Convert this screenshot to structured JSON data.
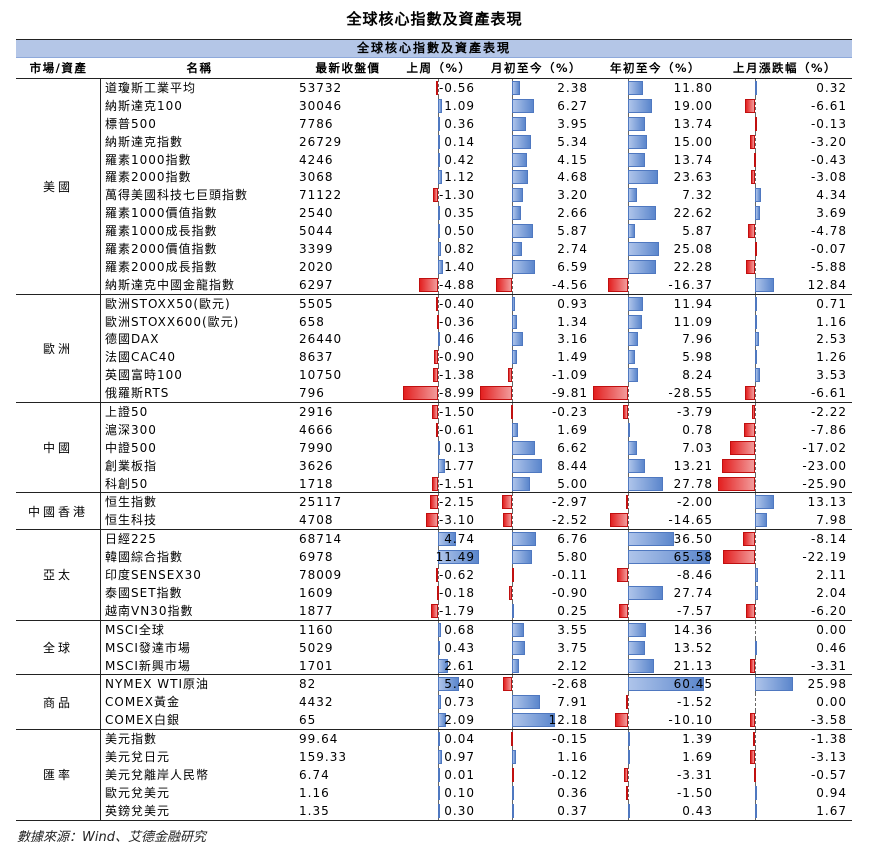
{
  "title": "全球核心指數及資產表現",
  "banner": "全球核心指數及資產表現",
  "headers": [
    "市場/資產",
    "名稱",
    "最新收盤價",
    "上周（%）",
    "月初至今（%）",
    "年初至今（%）",
    "上月漲跌幅（%）"
  ],
  "groups": [
    {
      "name": "美國",
      "rows": [
        {
          "name": "道瓊斯工業平均",
          "close": "53732",
          "wk": "-0.56",
          "mtd": "2.38",
          "ytd": "11.80",
          "lm": "0.32"
        },
        {
          "name": "納斯達克100",
          "close": "30046",
          "wk": "1.09",
          "mtd": "6.27",
          "ytd": "19.00",
          "lm": "-6.61"
        },
        {
          "name": "標普500",
          "close": "7786",
          "wk": "0.36",
          "mtd": "3.95",
          "ytd": "13.74",
          "lm": "-0.13"
        },
        {
          "name": "納斯達克指數",
          "close": "26729",
          "wk": "0.14",
          "mtd": "5.34",
          "ytd": "15.00",
          "lm": "-3.20"
        },
        {
          "name": "羅素1000指數",
          "close": "4246",
          "wk": "0.42",
          "mtd": "4.15",
          "ytd": "13.74",
          "lm": "-0.43"
        },
        {
          "name": "羅素2000指數",
          "close": "3068",
          "wk": "1.12",
          "mtd": "4.68",
          "ytd": "23.63",
          "lm": "-3.08"
        },
        {
          "name": "萬得美國科技七巨頭指數",
          "close": "71122",
          "wk": "-1.30",
          "mtd": "3.20",
          "ytd": "7.32",
          "lm": "4.34"
        },
        {
          "name": "羅素1000價值指數",
          "close": "2540",
          "wk": "0.35",
          "mtd": "2.66",
          "ytd": "22.62",
          "lm": "3.69"
        },
        {
          "name": "羅素1000成長指數",
          "close": "5044",
          "wk": "0.50",
          "mtd": "5.87",
          "ytd": "5.87",
          "lm": "-4.78"
        },
        {
          "name": "羅素2000價值指數",
          "close": "3399",
          "wk": "0.82",
          "mtd": "2.74",
          "ytd": "25.08",
          "lm": "-0.07"
        },
        {
          "name": "羅素2000成長指數",
          "close": "2020",
          "wk": "1.40",
          "mtd": "6.59",
          "ytd": "22.28",
          "lm": "-5.88"
        },
        {
          "name": "納斯達克中國金龍指數",
          "close": "6297",
          "wk": "-4.88",
          "mtd": "-4.56",
          "ytd": "-16.37",
          "lm": "12.84"
        }
      ]
    },
    {
      "name": "歐洲",
      "rows": [
        {
          "name": "歐洲STOXX50(歐元)",
          "close": "5505",
          "wk": "-0.40",
          "mtd": "0.93",
          "ytd": "11.94",
          "lm": "0.71"
        },
        {
          "name": "歐洲STOXX600(歐元)",
          "close": "658",
          "wk": "-0.36",
          "mtd": "1.34",
          "ytd": "11.09",
          "lm": "1.16"
        },
        {
          "name": "德國DAX",
          "close": "26440",
          "wk": "0.46",
          "mtd": "3.16",
          "ytd": "7.96",
          "lm": "2.53"
        },
        {
          "name": "法國CAC40",
          "close": "8637",
          "wk": "-0.90",
          "mtd": "1.49",
          "ytd": "5.98",
          "lm": "1.26"
        },
        {
          "name": "英國富時100",
          "close": "10750",
          "wk": "-1.38",
          "mtd": "-1.09",
          "ytd": "8.24",
          "lm": "3.53"
        },
        {
          "name": "俄羅斯RTS",
          "close": "796",
          "wk": "-8.99",
          "mtd": "-9.81",
          "ytd": "-28.55",
          "lm": "-6.61"
        }
      ]
    },
    {
      "name": "中國",
      "rows": [
        {
          "name": "上證50",
          "close": "2916",
          "wk": "-1.50",
          "mtd": "-0.23",
          "ytd": "-3.79",
          "lm": "-2.22"
        },
        {
          "name": "滬深300",
          "close": "4666",
          "wk": "-0.61",
          "mtd": "1.69",
          "ytd": "0.78",
          "lm": "-7.86"
        },
        {
          "name": "中證500",
          "close": "7990",
          "wk": "0.13",
          "mtd": "6.62",
          "ytd": "7.03",
          "lm": "-17.02"
        },
        {
          "name": "創業板指",
          "close": "3626",
          "wk": "1.77",
          "mtd": "8.44",
          "ytd": "13.21",
          "lm": "-23.00"
        },
        {
          "name": "科創50",
          "close": "1718",
          "wk": "-1.51",
          "mtd": "5.00",
          "ytd": "27.78",
          "lm": "-25.90"
        }
      ]
    },
    {
      "name": "中國香港",
      "rows": [
        {
          "name": "恒生指數",
          "close": "25117",
          "wk": "-2.15",
          "mtd": "-2.97",
          "ytd": "-2.00",
          "lm": "13.13"
        },
        {
          "name": "恒生科技",
          "close": "4708",
          "wk": "-3.10",
          "mtd": "-2.52",
          "ytd": "-14.65",
          "lm": "7.98"
        }
      ]
    },
    {
      "name": "亞太",
      "rows": [
        {
          "name": "日經225",
          "close": "68714",
          "wk": "4.74",
          "mtd": "6.76",
          "ytd": "36.50",
          "lm": "-8.14"
        },
        {
          "name": "韓國綜合指數",
          "close": "6978",
          "wk": "11.49",
          "mtd": "5.80",
          "ytd": "65.58",
          "lm": "-22.19"
        },
        {
          "name": "印度SENSEX30",
          "close": "78009",
          "wk": "-0.62",
          "mtd": "-0.11",
          "ytd": "-8.46",
          "lm": "2.11"
        },
        {
          "name": "泰國SET指數",
          "close": "1609",
          "wk": "-0.18",
          "mtd": "-0.90",
          "ytd": "27.74",
          "lm": "2.04"
        },
        {
          "name": "越南VN30指數",
          "close": "1877",
          "wk": "-1.79",
          "mtd": "0.25",
          "ytd": "-7.57",
          "lm": "-6.20"
        }
      ]
    },
    {
      "name": "全球",
      "rows": [
        {
          "name": "MSCI全球",
          "close": "1160",
          "wk": "0.68",
          "mtd": "3.55",
          "ytd": "14.36",
          "lm": "0.00"
        },
        {
          "name": "MSCI發達市場",
          "close": "5029",
          "wk": "0.43",
          "mtd": "3.75",
          "ytd": "13.52",
          "lm": "0.46"
        },
        {
          "name": "MSCI新興市場",
          "close": "1701",
          "wk": "2.61",
          "mtd": "2.12",
          "ytd": "21.13",
          "lm": "-3.31"
        }
      ]
    },
    {
      "name": "商品",
      "rows": [
        {
          "name": "NYMEX WTI原油",
          "close": "82",
          "wk": "5.40",
          "mtd": "-2.68",
          "ytd": "60.45",
          "lm": "25.98"
        },
        {
          "name": "COMEX黃金",
          "close": "4432",
          "wk": "0.73",
          "mtd": "7.91",
          "ytd": "-1.52",
          "lm": "0.00"
        },
        {
          "name": "COMEX白銀",
          "close": "65",
          "wk": "2.09",
          "mtd": "12.18",
          "ytd": "-10.10",
          "lm": "-3.58"
        }
      ]
    },
    {
      "name": "匯率",
      "rows": [
        {
          "name": "美元指數",
          "close": "99.64",
          "wk": "0.04",
          "mtd": "-0.15",
          "ytd": "1.39",
          "lm": "-1.38"
        },
        {
          "name": "美元兌日元",
          "close": "159.33",
          "wk": "0.97",
          "mtd": "1.16",
          "ytd": "1.69",
          "lm": "-3.13"
        },
        {
          "name": "美元兌離岸人民幣",
          "close": "6.74",
          "wk": "0.01",
          "mtd": "-0.12",
          "ytd": "-3.31",
          "lm": "-0.57"
        },
        {
          "name": "歐元兌美元",
          "close": "1.16",
          "wk": "0.10",
          "mtd": "0.36",
          "ytd": "-1.50",
          "lm": "0.94"
        },
        {
          "name": "英鎊兌美元",
          "close": "1.35",
          "wk": "0.30",
          "mtd": "0.37",
          "ytd": "0.43",
          "lm": "1.67"
        }
      ]
    }
  ],
  "footer": "數據來源：Wind、艾德金融研究",
  "colors": {
    "positive_bar": "#5b86cc",
    "negative_bar": "#e32020",
    "banner": "#b4c6e7"
  }
}
